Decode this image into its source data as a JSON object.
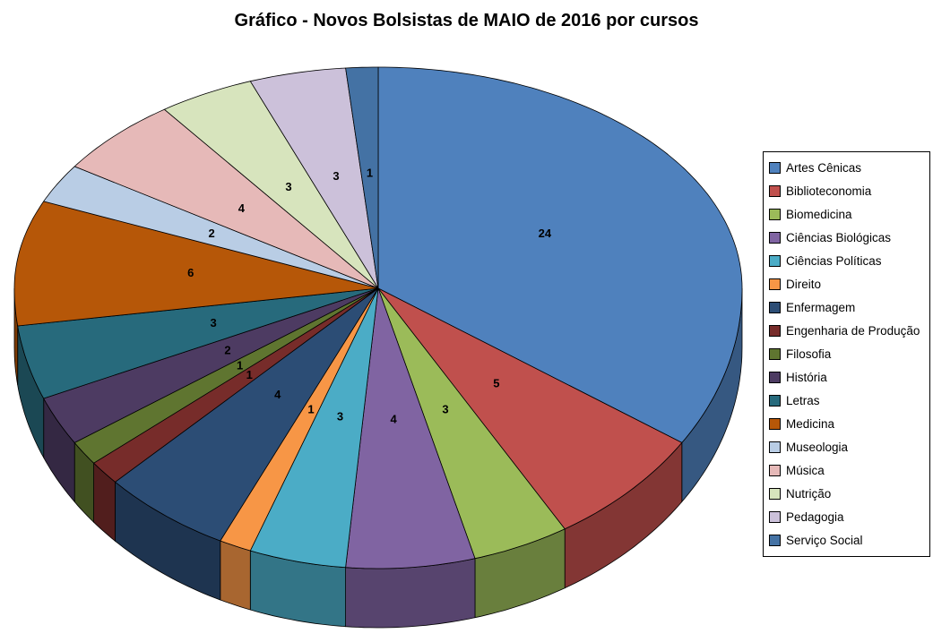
{
  "title": "Gráfico - Novos Bolsistas de MAIO de 2016 por cursos",
  "chart_data": {
    "type": "pie",
    "style": "3d",
    "title": "Gráfico - Novos Bolsistas de MAIO de 2016 por cursos",
    "total": 70,
    "categories": [
      "Artes Cênicas",
      "Biblioteconomia",
      "Biomedicina",
      "Ciências Biológicas",
      "Ciências Políticas",
      "Direito",
      "Enfermagem",
      "Engenharia de Produção",
      "Filosofia",
      "História",
      "Letras",
      "Medicina",
      "Museologia",
      "Música",
      "Nutrição",
      "Pedagogia",
      "Serviço Social"
    ],
    "values": [
      24,
      5,
      3,
      4,
      3,
      1,
      4,
      1,
      1,
      2,
      3,
      6,
      2,
      4,
      3,
      3,
      1
    ],
    "colors": [
      "#4F81BD",
      "#C0504D",
      "#9BBB59",
      "#8064A2",
      "#4BACC6",
      "#F79646",
      "#2C4D75",
      "#772C2A",
      "#5F7530",
      "#4D3B62",
      "#276A7C",
      "#B65708",
      "#B9CDE5",
      "#E6B9B8",
      "#D7E4BD",
      "#CCC1DA",
      "#4472A4"
    ],
    "data_labels": "values",
    "legend_position": "right",
    "start_angle": 0,
    "direction": "clockwise"
  }
}
